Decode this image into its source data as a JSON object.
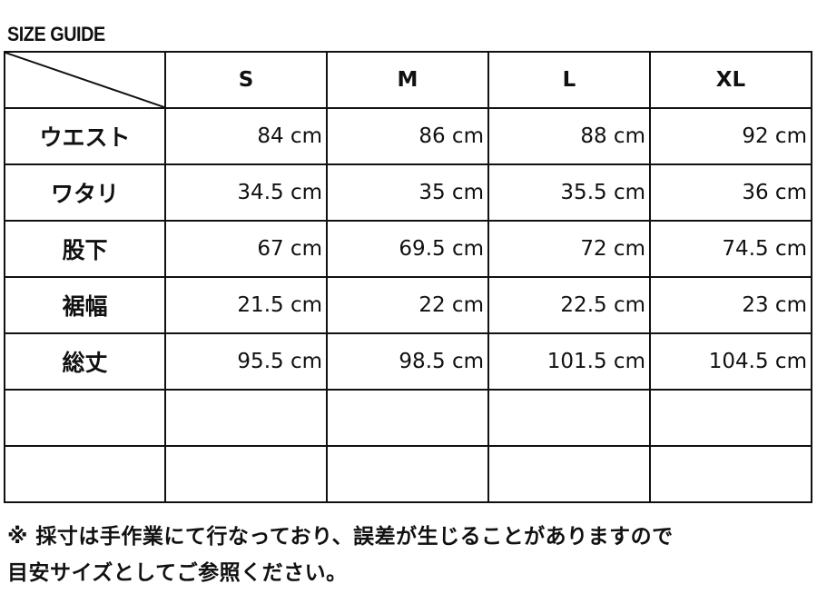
{
  "title": "SIZE GUIDE",
  "table": {
    "sizes": [
      "S",
      "M",
      "L",
      "XL"
    ],
    "rows": [
      {
        "label": "ウエスト",
        "values": [
          "84 cm",
          "86 cm",
          "88 cm",
          "92 cm"
        ]
      },
      {
        "label": "ワタリ",
        "values": [
          "34.5 cm",
          "35 cm",
          "35.5 cm",
          "36 cm"
        ]
      },
      {
        "label": "股下",
        "values": [
          "67 cm",
          "69.5 cm",
          "72 cm",
          "74.5 cm"
        ]
      },
      {
        "label": "裾幅",
        "values": [
          "21.5 cm",
          "22 cm",
          "22.5 cm",
          "23 cm"
        ]
      },
      {
        "label": "総丈",
        "values": [
          "95.5 cm",
          "98.5 cm",
          "101.5 cm",
          "104.5 cm"
        ]
      },
      {
        "label": "",
        "values": [
          "",
          "",
          "",
          ""
        ]
      },
      {
        "label": "",
        "values": [
          "",
          "",
          "",
          ""
        ]
      }
    ]
  },
  "note": {
    "line1": "※ 採寸は手作業にて行なっており、誤差が生じることがありますので",
    "line2": "目安サイズとしてご参照ください。"
  }
}
